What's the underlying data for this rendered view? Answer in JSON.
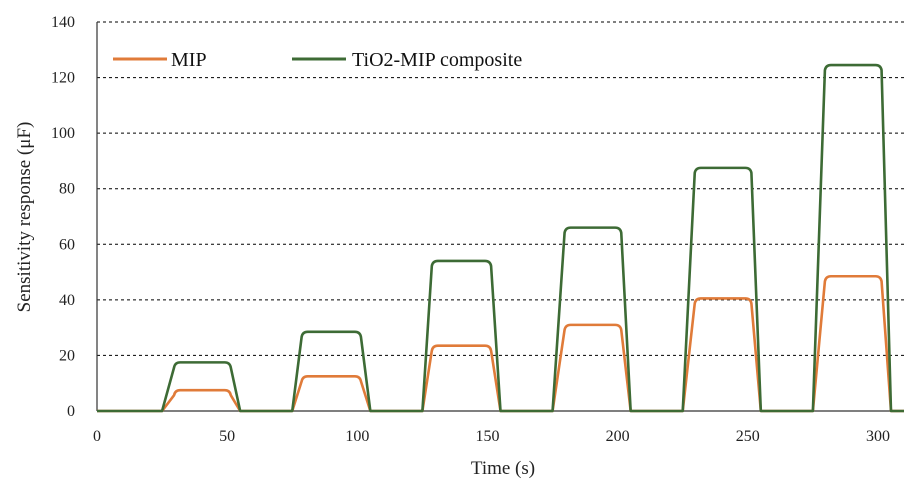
{
  "chart_data": {
    "type": "line",
    "xlabel": "Time (s)",
    "ylabel": "Sensitivity  response (μF)",
    "xlim": [
      0,
      310
    ],
    "ylim": [
      0,
      140
    ],
    "xticks": [
      0,
      50,
      100,
      150,
      200,
      250,
      300
    ],
    "yticks": [
      0,
      20,
      40,
      60,
      80,
      100,
      120,
      140
    ],
    "grid": "horizontal dashed",
    "legend_position": "top-left",
    "pulses": [
      {
        "start": 25,
        "rise_end": 30,
        "fall_start": 51,
        "end": 55
      },
      {
        "start": 75,
        "rise_end": 79,
        "fall_start": 101,
        "end": 105
      },
      {
        "start": 125,
        "rise_end": 129,
        "fall_start": 151,
        "end": 155
      },
      {
        "start": 175,
        "rise_end": 180,
        "fall_start": 201,
        "end": 205
      },
      {
        "start": 225,
        "rise_end": 230,
        "fall_start": 251,
        "end": 255
      },
      {
        "start": 275,
        "rise_end": 280,
        "fall_start": 301,
        "end": 305
      }
    ],
    "series": [
      {
        "name": "MIP",
        "color": "#E07B39",
        "plateaus": [
          7.5,
          12.5,
          23.5,
          31,
          40.5,
          48.5
        ]
      },
      {
        "name": "TiO2-MIP composite",
        "color": "#3D6B35",
        "plateaus": [
          17.5,
          28.5,
          54,
          66,
          87.5,
          124.5
        ]
      }
    ]
  }
}
